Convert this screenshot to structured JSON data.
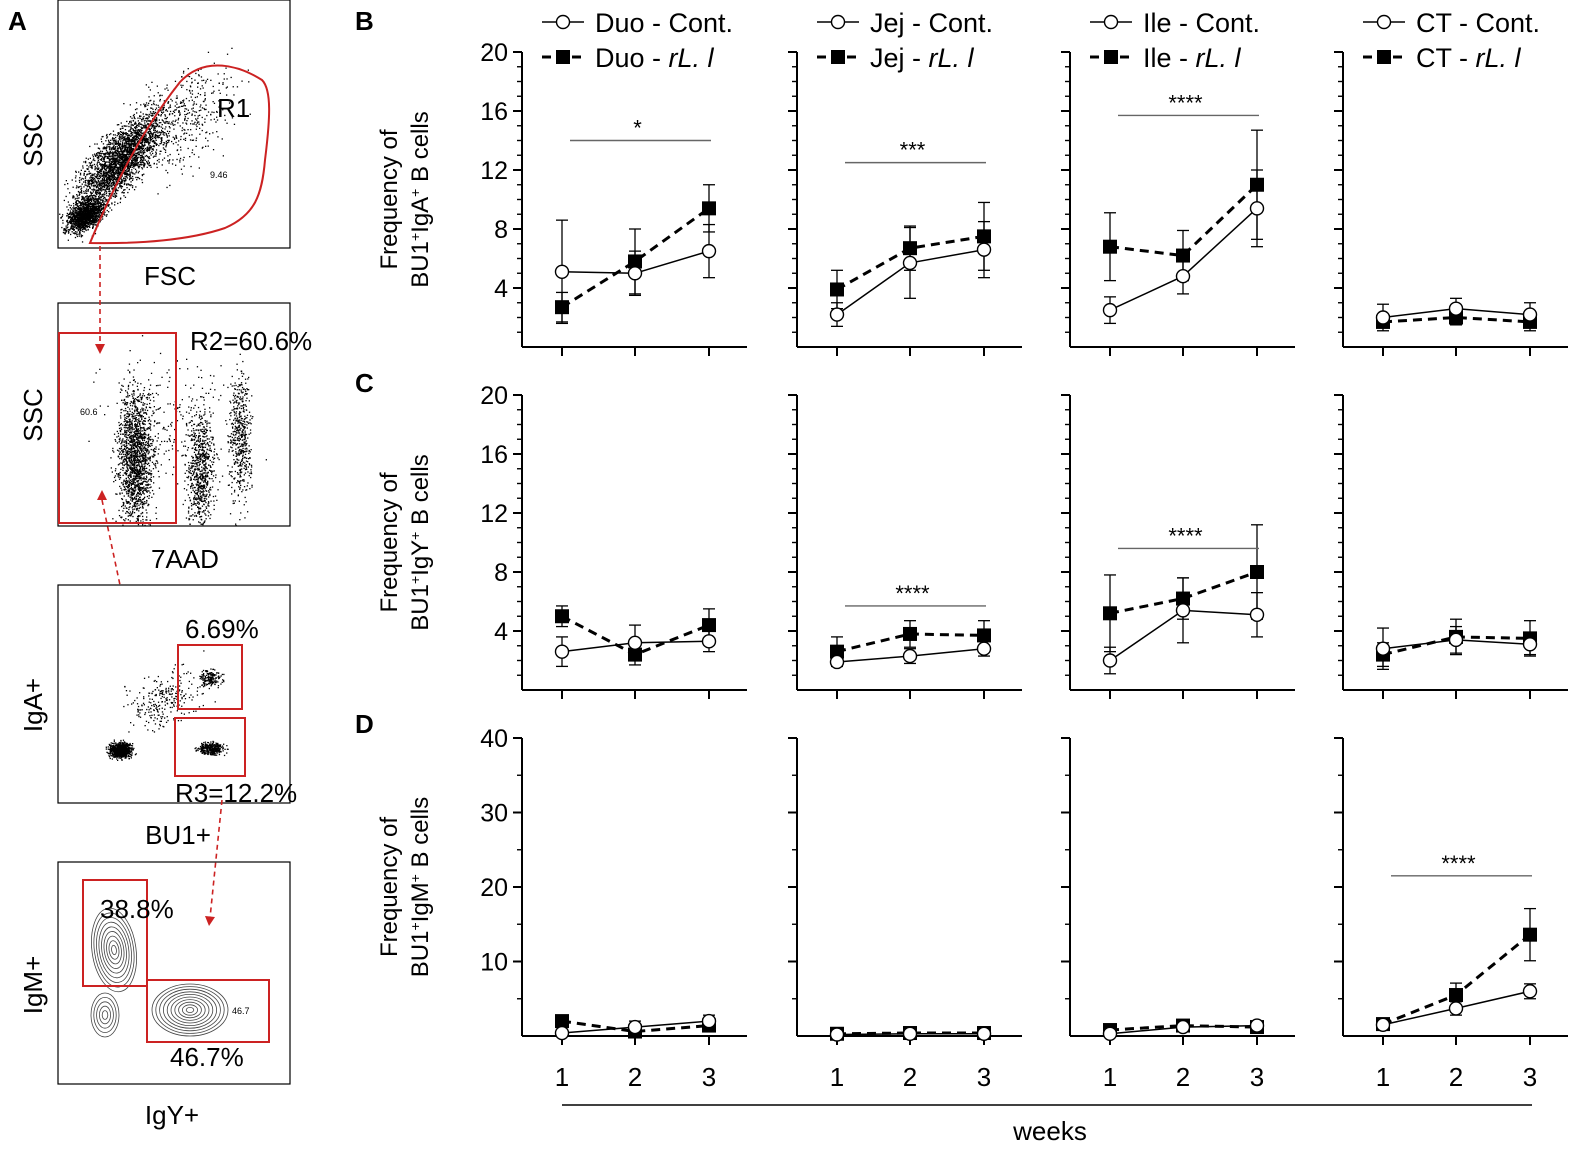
{
  "panel_labels": [
    "A",
    "B",
    "C",
    "D"
  ],
  "flow": {
    "p1": {
      "ylabel": "SSC",
      "xlabel": "FSC",
      "gate_label": "R1",
      "gate_value": "9.46"
    },
    "p2": {
      "ylabel": "SSC",
      "xlabel": "7AAD",
      "gate_label": "R2=60.6%",
      "gate_value": "60.6"
    },
    "p3": {
      "ylabel": "IgA+",
      "xlabel": "BU1+",
      "upper_gate_label": "6.69%",
      "lower_gate_label": "R3=12.2%"
    },
    "p4": {
      "ylabel": "IgM+",
      "xlabel": "IgY+",
      "left_gate_label": "38.8%",
      "right_gate_label": "46.7%",
      "right_gate_value": "46.7"
    }
  },
  "colors": {
    "gate": "#cc2222",
    "series": "#000000",
    "sig_line": "#666666"
  },
  "chart_data": {
    "type": "line",
    "x": [
      1,
      2,
      3
    ],
    "xlabel": "weeks",
    "tissues": [
      "Duo",
      "Jej",
      "Ile",
      "CT"
    ],
    "legends": [
      {
        "cont": "Duo - Cont.",
        "rl_prefix": "Duo - ",
        "rl_italic": "rL. l"
      },
      {
        "cont": "Jej - Cont.",
        "rl_prefix": "Jej - ",
        "rl_italic": "rL. l"
      },
      {
        "cont": "Ile - Cont.",
        "rl_prefix": "Ile - ",
        "rl_italic": "rL. l"
      },
      {
        "cont": "CT - Cont.",
        "rl_prefix": "CT - ",
        "rl_italic": "rL. l"
      }
    ],
    "rows": [
      {
        "panel": "B",
        "ylabel_line1": "Frequency of",
        "ylabel_parts": [
          "BU1",
          "+",
          "IgA",
          "+",
          " B cells"
        ],
        "ylim": [
          0,
          20
        ],
        "yticks": [
          4,
          8,
          12,
          16,
          20
        ],
        "groups": [
          {
            "cont": [
              5.1,
              5.0,
              6.5
            ],
            "cont_err": [
              3.5,
              1.5,
              1.8
            ],
            "rl": [
              2.7,
              5.8,
              9.4
            ],
            "rl_err": [
              1.0,
              2.2,
              1.6
            ],
            "sig": "*",
            "sig_y": 14.0
          },
          {
            "cont": [
              2.2,
              5.7,
              6.6
            ],
            "cont_err": [
              0.8,
              2.4,
              1.9
            ],
            "rl": [
              3.9,
              6.7,
              7.5
            ],
            "rl_err": [
              1.3,
              1.5,
              2.3
            ],
            "sig": "***",
            "sig_y": 12.5
          },
          {
            "cont": [
              2.5,
              4.8,
              9.4
            ],
            "cont_err": [
              0.9,
              1.2,
              2.6
            ],
            "rl": [
              6.8,
              6.2,
              11.0
            ],
            "rl_err": [
              2.3,
              1.7,
              3.7
            ],
            "sig": "****",
            "sig_y": 15.7
          },
          {
            "cont": [
              2.0,
              2.6,
              2.2
            ],
            "cont_err": [
              0.9,
              0.7,
              0.8
            ],
            "rl": [
              1.7,
              2.0,
              1.7
            ],
            "rl_err": [
              0.4,
              0.5,
              0.6
            ],
            "sig": "",
            "sig_y": null
          }
        ]
      },
      {
        "panel": "C",
        "ylabel_line1": "Frequency of",
        "ylabel_parts": [
          "BU1",
          "+",
          "IgY",
          "+",
          " B cells"
        ],
        "ylim": [
          0,
          20
        ],
        "yticks": [
          4,
          8,
          12,
          16,
          20
        ],
        "groups": [
          {
            "cont": [
              2.6,
              3.2,
              3.3
            ],
            "cont_err": [
              1.0,
              1.2,
              0.7
            ],
            "rl": [
              5.0,
              2.4,
              4.4
            ],
            "rl_err": [
              0.7,
              0.7,
              1.1
            ],
            "sig": "",
            "sig_y": null
          },
          {
            "cont": [
              1.9,
              2.3,
              2.8
            ],
            "cont_err": [
              0.3,
              0.5,
              0.5
            ],
            "rl": [
              2.6,
              3.8,
              3.7
            ],
            "rl_err": [
              1.0,
              0.9,
              1.0
            ],
            "sig": "****",
            "sig_y": 5.7
          },
          {
            "cont": [
              2.0,
              5.4,
              5.1
            ],
            "cont_err": [
              0.9,
              2.2,
              1.5
            ],
            "rl": [
              5.2,
              6.2,
              8.0
            ],
            "rl_err": [
              2.6,
              1.4,
              3.2
            ],
            "sig": "****",
            "sig_y": 9.6
          },
          {
            "cont": [
              2.8,
              3.4,
              3.1
            ],
            "cont_err": [
              1.4,
              0.9,
              0.7
            ],
            "rl": [
              2.4,
              3.6,
              3.5
            ],
            "rl_err": [
              0.8,
              1.2,
              1.2
            ],
            "sig": "",
            "sig_y": null
          }
        ]
      },
      {
        "panel": "D",
        "ylabel_line1": "Frequency of",
        "ylabel_parts": [
          "BU1",
          "+",
          "IgM",
          "+",
          " B cells"
        ],
        "ylim": [
          0,
          40
        ],
        "yticks": [
          10,
          20,
          30,
          40
        ],
        "groups": [
          {
            "cont": [
              0.4,
              1.2,
              2.0
            ],
            "cont_err": [
              0.4,
              0.8,
              0.8
            ],
            "rl": [
              2.0,
              0.6,
              1.4
            ],
            "rl_err": [
              0.4,
              0.5,
              0.5
            ],
            "sig": "",
            "sig_y": null
          },
          {
            "cont": [
              0.2,
              0.3,
              0.3
            ],
            "cont_err": [
              0.1,
              0.1,
              0.1
            ],
            "rl": [
              0.3,
              0.4,
              0.4
            ],
            "rl_err": [
              0.1,
              0.1,
              0.1
            ],
            "sig": "",
            "sig_y": null
          },
          {
            "cont": [
              0.3,
              1.2,
              1.4
            ],
            "cont_err": [
              0.2,
              0.4,
              0.5
            ],
            "rl": [
              0.8,
              1.4,
              1.2
            ],
            "rl_err": [
              0.3,
              0.4,
              0.4
            ],
            "sig": "",
            "sig_y": null
          },
          {
            "cont": [
              1.5,
              3.7,
              6.0
            ],
            "cont_err": [
              0.5,
              0.9,
              1.0
            ],
            "rl": [
              1.6,
              5.5,
              13.6
            ],
            "rl_err": [
              0.6,
              1.6,
              3.5
            ],
            "sig": "****",
            "sig_y": 21.5
          }
        ]
      }
    ]
  }
}
